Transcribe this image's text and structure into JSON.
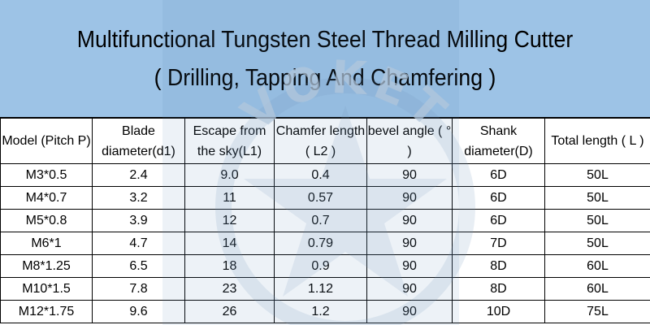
{
  "title": {
    "line1": "Multifunctional Tungsten Steel  Thread Milling Cutter",
    "line2": "( Drilling, Tapping And Chamfering )"
  },
  "table": {
    "headers": [
      "Model (Pitch P)",
      "Blade diameter(d1)",
      "Escape from the sky(L1)",
      "Chamfer length ( L2 )",
      "bevel angle ( ° )",
      "Shank diameter(D)",
      "Total length ( L )"
    ],
    "rows": [
      [
        "M3*0.5",
        "2.4",
        "9.0",
        "0.4",
        "90",
        "6D",
        "50L"
      ],
      [
        "M4*0.7",
        "3.2",
        "11",
        "0.57",
        "90",
        "6D",
        "50L"
      ],
      [
        "M5*0.8",
        "3.9",
        "12",
        "0.7",
        "90",
        "6D",
        "50L"
      ],
      [
        "M6*1",
        "4.7",
        "14",
        "0.79",
        "90",
        "7D",
        "50L"
      ],
      [
        "M8*1.25",
        "6.5",
        "18",
        "0.9",
        "90",
        "8D",
        "60L"
      ],
      [
        "M10*1.5",
        "7.8",
        "23",
        "1.12",
        "90",
        "8D",
        "60L"
      ],
      [
        "M12*1.75",
        "9.6",
        "26",
        "1.2",
        "90",
        "10D",
        "75L"
      ]
    ]
  },
  "watermark": {
    "text": "VOKET",
    "color": "#b4c8dc"
  },
  "colors": {
    "header_bg": "#9dc3e6",
    "border": "#000000"
  }
}
